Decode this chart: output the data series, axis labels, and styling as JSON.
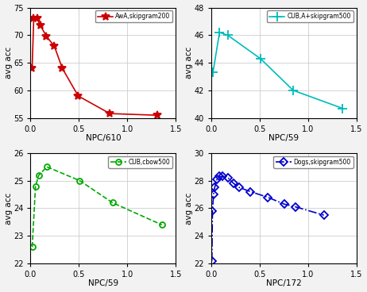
{
  "plots": [
    {
      "title": "AwA,skipgram200",
      "xlabel": "NPC/610",
      "ylabel": "avg acc",
      "color": "#cc0000",
      "linestyle": "-",
      "marker": "*",
      "markersize": 7,
      "markerfacecolor": "#cc0000",
      "x": [
        0.016,
        0.033,
        0.066,
        0.1,
        0.164,
        0.246,
        0.328,
        0.492,
        0.82,
        1.311
      ],
      "y": [
        64.0,
        73.0,
        73.0,
        71.8,
        69.8,
        68.0,
        64.0,
        59.0,
        55.8,
        55.5
      ],
      "ylim": [
        55,
        75
      ],
      "yticks": [
        55,
        60,
        65,
        70,
        75
      ],
      "xlim": [
        0,
        1.5
      ],
      "xticks": [
        0,
        0.5,
        1.0,
        1.5
      ],
      "dashed": false
    },
    {
      "title": "CUB,A+skipgram500",
      "xlabel": "NPC/59",
      "ylabel": "avg acc",
      "color": "#00bbbb",
      "linestyle": "-",
      "marker": "+",
      "markersize": 8,
      "markerfacecolor": "#00bbbb",
      "x": [
        0.017,
        0.085,
        0.169,
        0.508,
        0.847,
        1.356
      ],
      "y": [
        43.3,
        46.2,
        46.0,
        44.3,
        42.0,
        40.7
      ],
      "ylim": [
        40,
        48
      ],
      "yticks": [
        40,
        42,
        44,
        46,
        48
      ],
      "xlim": [
        0,
        1.5
      ],
      "xticks": [
        0,
        0.5,
        1.0,
        1.5
      ],
      "dashed": false
    },
    {
      "title": "CUB,cbow500",
      "xlabel": "NPC/59",
      "ylabel": "avg acc",
      "color": "#00aa00",
      "linestyle": "--",
      "marker": "o",
      "markersize": 5,
      "markerfacecolor": "none",
      "x": [
        0.017,
        0.051,
        0.085,
        0.169,
        0.508,
        0.847,
        1.356
      ],
      "y": [
        22.6,
        24.8,
        25.2,
        25.5,
        25.0,
        24.2,
        23.4
      ],
      "ylim": [
        22,
        26
      ],
      "yticks": [
        22,
        23,
        24,
        25,
        26
      ],
      "xlim": [
        0,
        1.5
      ],
      "xticks": [
        0,
        0.5,
        1.0,
        1.5
      ],
      "dashed": true
    },
    {
      "title": "Dogs,skipgram500",
      "xlabel": "NPC/172",
      "ylabel": "avg acc",
      "color": "#0000cc",
      "linestyle": "-.",
      "marker": "D",
      "markersize": 5,
      "markerfacecolor": "none",
      "x": [
        0.006,
        0.012,
        0.023,
        0.035,
        0.058,
        0.081,
        0.116,
        0.174,
        0.23,
        0.291,
        0.406,
        0.581,
        0.754,
        0.872,
        1.163
      ],
      "y": [
        22.2,
        25.8,
        27.0,
        27.5,
        28.1,
        28.3,
        28.3,
        28.2,
        27.8,
        27.5,
        27.2,
        26.8,
        26.3,
        26.1,
        25.5
      ],
      "ylim": [
        22,
        30
      ],
      "yticks": [
        22,
        24,
        26,
        28,
        30
      ],
      "xlim": [
        0,
        1.5
      ],
      "xticks": [
        0,
        0.5,
        1.0,
        1.5
      ],
      "dashed": true
    }
  ],
  "figure_bg": "#f2f2f2",
  "axes_bg": "#ffffff"
}
